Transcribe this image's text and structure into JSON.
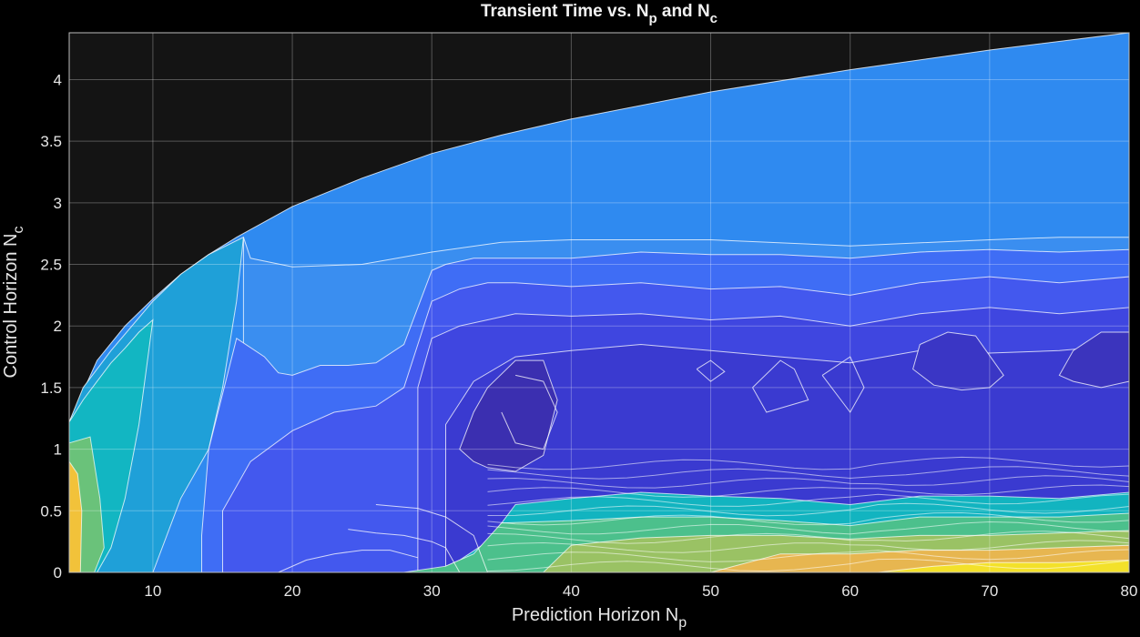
{
  "chart_data": {
    "type": "contour",
    "title": {
      "prefix": "Transient Time vs. N",
      "sub1": "p",
      "middle": " and N",
      "sub2": "c"
    },
    "xlabel": {
      "main": "Prediction Horizon N",
      "sub": "p"
    },
    "ylabel": {
      "main": "Control Horizon N",
      "sub": "c"
    },
    "xlim": [
      4,
      80
    ],
    "ylim": [
      0,
      4.38
    ],
    "xticks": [
      "10",
      "20",
      "30",
      "40",
      "50",
      "60",
      "70",
      "80"
    ],
    "yticks": [
      "0",
      "0.5",
      "1",
      "1.5",
      "2",
      "2.5",
      "3",
      "3.5",
      "4"
    ],
    "grid": true,
    "colormap": "parula",
    "background": "#000000",
    "axes_color": "#141414",
    "valid_region_boundary": {
      "description": "Nc upper bound of filled region",
      "x": [
        4,
        6,
        8,
        10,
        12,
        14,
        16,
        20,
        25,
        30,
        35,
        40,
        50,
        60,
        70,
        80
      ],
      "y": [
        1.22,
        1.72,
        2.0,
        2.22,
        2.42,
        2.58,
        2.72,
        2.97,
        3.2,
        3.4,
        3.55,
        3.68,
        3.9,
        4.08,
        4.24,
        4.38
      ]
    },
    "regions": [
      {
        "level": 0.3,
        "x": [
          4,
          6,
          8,
          10,
          12,
          14,
          16,
          20,
          25,
          30,
          35,
          40,
          50,
          60,
          70,
          80
        ],
        "y": [
          1.22,
          1.72,
          2.0,
          2.22,
          2.42,
          2.58,
          2.72,
          2.97,
          3.2,
          3.4,
          3.55,
          3.68,
          3.9,
          4.08,
          4.24,
          4.38
        ],
        "closed_bottom": true
      },
      {
        "level": 0.22,
        "x": [
          16.5,
          17,
          20,
          25,
          30,
          35,
          40,
          50,
          60,
          70,
          75,
          80
        ],
        "y": [
          2.72,
          2.55,
          2.48,
          2.5,
          2.6,
          2.68,
          2.7,
          2.7,
          2.65,
          2.7,
          2.72,
          2.72
        ],
        "closed_bottom": true
      },
      {
        "level": 0.2,
        "x": [
          4,
          5,
          7,
          10,
          12,
          14,
          16.5,
          16,
          15,
          14,
          12,
          11,
          10,
          8,
          6,
          4
        ],
        "y": [
          1.22,
          1.5,
          1.8,
          2.2,
          2.42,
          2.58,
          2.72,
          2.2,
          1.5,
          1.0,
          0.6,
          0.3,
          0.0,
          0.0,
          0.0,
          0.0
        ],
        "closed_bottom": false
      },
      {
        "level": 0.15,
        "x": [
          4,
          5,
          6,
          7,
          8,
          9,
          10,
          9,
          8,
          7,
          6,
          5,
          4
        ],
        "y": [
          1.22,
          1.4,
          1.55,
          1.7,
          1.82,
          1.95,
          2.05,
          1.2,
          0.6,
          0.2,
          0.0,
          0.0,
          0.0
        ],
        "closed_bottom": false
      },
      {
        "level": 0.35,
        "x": [
          13.5,
          14,
          16,
          18,
          19,
          20,
          22,
          24,
          26,
          28,
          30,
          31,
          33,
          36,
          40,
          45,
          50,
          55,
          60,
          65,
          70,
          75,
          80
        ],
        "y": [
          0.3,
          1.0,
          1.9,
          1.75,
          1.62,
          1.6,
          1.68,
          1.68,
          1.7,
          1.85,
          2.45,
          2.5,
          2.55,
          2.55,
          2.55,
          2.6,
          2.58,
          2.58,
          2.55,
          2.6,
          2.62,
          2.6,
          2.62
        ],
        "closed_bottom": true
      },
      {
        "level": 0.42,
        "x": [
          15,
          17,
          20,
          23,
          26,
          28,
          30,
          32,
          34,
          36,
          40,
          45,
          50,
          55,
          60,
          65,
          70,
          75,
          80
        ],
        "y": [
          0.5,
          0.9,
          1.15,
          1.3,
          1.35,
          1.5,
          2.2,
          2.3,
          2.35,
          2.35,
          2.32,
          2.35,
          2.3,
          2.32,
          2.25,
          2.35,
          2.4,
          2.35,
          2.4
        ],
        "closed_bottom": true
      },
      {
        "level": 0.48,
        "x": [
          29,
          30,
          32,
          34,
          36,
          40,
          45,
          50,
          55,
          60,
          65,
          70,
          75,
          80
        ],
        "y": [
          1.5,
          1.9,
          2.0,
          2.05,
          2.1,
          2.08,
          2.1,
          2.05,
          2.08,
          2.0,
          2.1,
          2.15,
          2.1,
          2.15
        ],
        "closed_bottom": true
      },
      {
        "level": 0.55,
        "x": [
          31,
          33,
          36,
          40,
          45,
          50,
          55,
          60,
          65,
          70,
          75,
          80
        ],
        "y": [
          1.2,
          1.55,
          1.75,
          1.8,
          1.85,
          1.8,
          1.75,
          1.7,
          1.8,
          1.78,
          1.8,
          1.85
        ],
        "closed_bottom": true
      },
      {
        "level": 0.62,
        "x": [
          32,
          33,
          34,
          36,
          38,
          39,
          38,
          36,
          34,
          33,
          32
        ],
        "y": [
          1.0,
          1.3,
          1.5,
          1.72,
          1.72,
          1.4,
          0.95,
          0.82,
          0.85,
          0.9,
          1.0
        ],
        "closed_bottom": false
      },
      {
        "level": 0.65,
        "x": [
          75,
          76,
          78,
          80,
          80,
          78,
          76,
          75
        ],
        "y": [
          1.6,
          1.8,
          1.95,
          1.95,
          1.55,
          1.5,
          1.55,
          1.6
        ],
        "closed_bottom": false
      },
      {
        "level": 0.6,
        "x": [
          64.5,
          65,
          67,
          69,
          71,
          70,
          68,
          66,
          64.5
        ],
        "y": [
          1.65,
          1.85,
          1.95,
          1.92,
          1.6,
          1.5,
          1.48,
          1.52,
          1.65
        ],
        "closed_bottom": false
      }
    ],
    "bottom_bands": [
      {
        "level": 0.7,
        "x": [
          30,
          32,
          34,
          36,
          40,
          45,
          50,
          55,
          60,
          65,
          70,
          75,
          80
        ],
        "y": [
          0.0,
          0.1,
          0.25,
          0.55,
          0.6,
          0.65,
          0.62,
          0.6,
          0.55,
          0.62,
          0.62,
          0.6,
          0.65
        ]
      },
      {
        "level": 0.78,
        "x": [
          28,
          31,
          33,
          35,
          40,
          45,
          50,
          55,
          60,
          65,
          70,
          75,
          80
        ],
        "y": [
          0.0,
          0.05,
          0.15,
          0.4,
          0.42,
          0.45,
          0.45,
          0.42,
          0.38,
          0.45,
          0.45,
          0.45,
          0.48
        ]
      },
      {
        "level": 0.86,
        "x": [
          38,
          40,
          45,
          50,
          55,
          60,
          65,
          70,
          75,
          80
        ],
        "y": [
          0.0,
          0.22,
          0.28,
          0.3,
          0.3,
          0.27,
          0.3,
          0.3,
          0.32,
          0.34
        ]
      },
      {
        "level": 0.94,
        "x": [
          50,
          55,
          60,
          65,
          70,
          75,
          80
        ],
        "y": [
          0.0,
          0.15,
          0.15,
          0.18,
          0.18,
          0.2,
          0.22
        ]
      },
      {
        "level": 1.0,
        "x": [
          62,
          66,
          70,
          75,
          80
        ],
        "y": [
          0.0,
          0.05,
          0.08,
          0.08,
          0.1
        ]
      }
    ],
    "left_edge_bands": [
      {
        "level": 0.75,
        "x": [
          4,
          5.5,
          6.2,
          6.5,
          5.8,
          4
        ],
        "y": [
          1.05,
          1.1,
          0.6,
          0.2,
          0.0,
          0.0
        ]
      },
      {
        "level": 0.9,
        "x": [
          4,
          4.6,
          4.9,
          4.8,
          4
        ],
        "y": [
          0.9,
          0.8,
          0.5,
          0.0,
          0.0
        ]
      }
    ],
    "extra_contours": [
      {
        "x": [
          24,
          26,
          28,
          30,
          31,
          32
        ],
        "y": [
          0.35,
          0.32,
          0.3,
          0.25,
          0.2,
          0.0
        ]
      },
      {
        "x": [
          19,
          21,
          23,
          25,
          27,
          29
        ],
        "y": [
          0.0,
          0.1,
          0.15,
          0.18,
          0.18,
          0.12
        ]
      },
      {
        "x": [
          26,
          29,
          31,
          33,
          34
        ],
        "y": [
          0.55,
          0.52,
          0.45,
          0.3,
          0.0
        ]
      },
      {
        "x": [
          36,
          38,
          39,
          38,
          36,
          35
        ],
        "y": [
          1.6,
          1.55,
          1.3,
          1.0,
          1.05,
          1.3
        ]
      },
      {
        "x": [
          49,
          50,
          51,
          50,
          49
        ],
        "y": [
          1.65,
          1.72,
          1.63,
          1.55,
          1.65
        ]
      },
      {
        "x": [
          58,
          60,
          61,
          60,
          58
        ],
        "y": [
          1.6,
          1.75,
          1.5,
          1.3,
          1.6
        ]
      },
      {
        "x": [
          53,
          55,
          56,
          57,
          54,
          53
        ],
        "y": [
          1.5,
          1.72,
          1.65,
          1.4,
          1.3,
          1.5
        ]
      }
    ]
  }
}
